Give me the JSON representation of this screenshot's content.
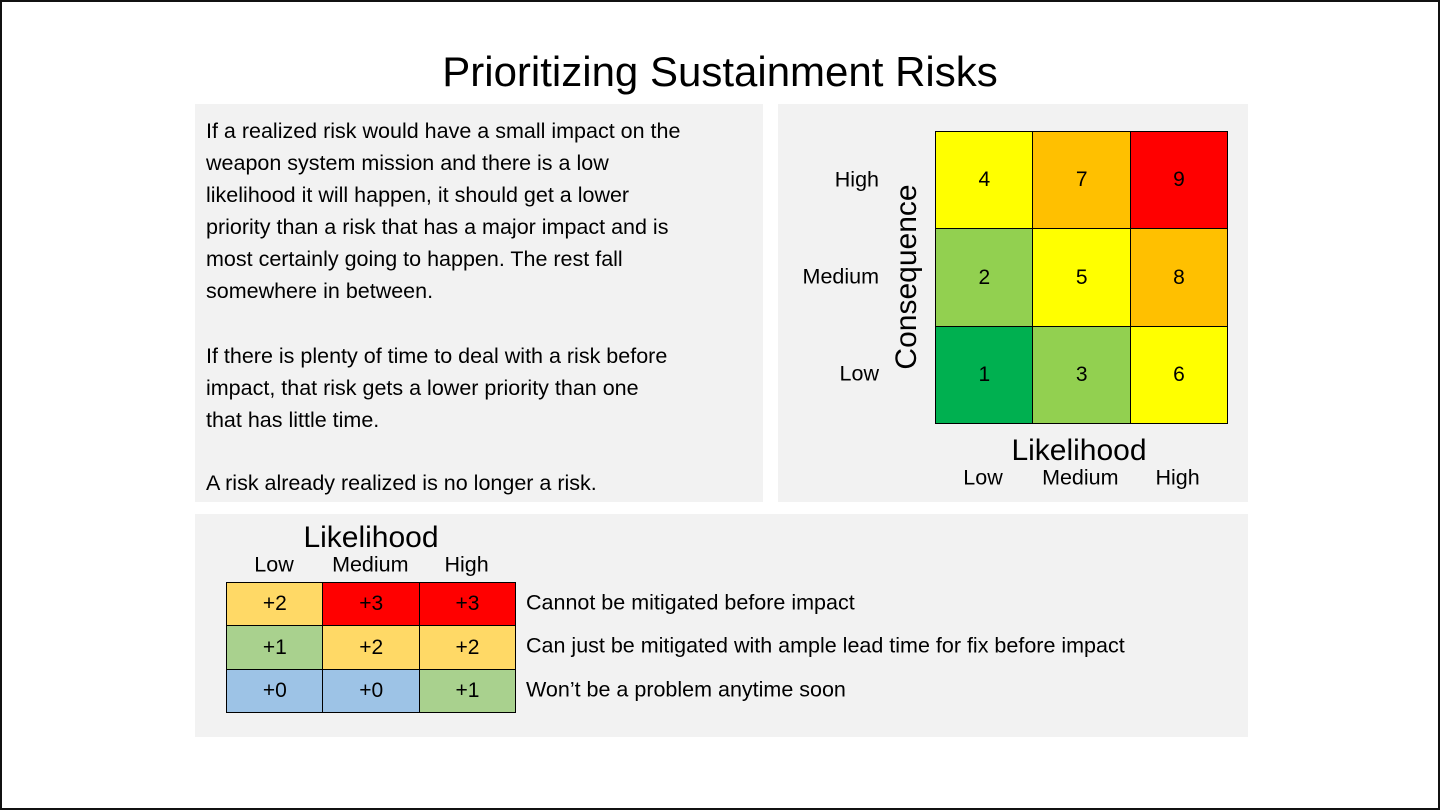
{
  "title": "Prioritizing Sustainment Risks",
  "paragraphs": [
    [
      "If a realized risk would have a small impact on the",
      "weapon system mission and there is a low",
      "likelihood it will happen, it should get a lower",
      "priority than a risk that has a major impact and is",
      "most certainly going to happen. The rest fall",
      "somewhere in between."
    ],
    [
      "If there is plenty of time to deal with a risk before",
      "impact, that risk gets a lower priority than one",
      "that has little time."
    ],
    [
      "A risk already realized is no longer a risk."
    ]
  ],
  "matrix": {
    "y_label": "Consequence",
    "x_label": "Likelihood",
    "rows": [
      "High",
      "Medium",
      "Low"
    ],
    "cols": [
      "Low",
      "Medium",
      "High"
    ],
    "values": [
      [
        "4",
        "7",
        "9"
      ],
      [
        "2",
        "5",
        "8"
      ],
      [
        "1",
        "3",
        "6"
      ]
    ],
    "colors": [
      [
        "#ffff00",
        "#ffc000",
        "#ff0000"
      ],
      [
        "#92d050",
        "#ffff00",
        "#ffc000"
      ],
      [
        "#00b050",
        "#92d050",
        "#ffff00"
      ]
    ]
  },
  "modifier": {
    "x_label": "Likelihood",
    "cols": [
      "Low",
      "Medium",
      "High"
    ],
    "values": [
      [
        "+2",
        "+3",
        "+3"
      ],
      [
        "+1",
        "+2",
        "+2"
      ],
      [
        "+0",
        "+0",
        "+1"
      ]
    ],
    "colors": [
      [
        "#ffd966",
        "#ff0000",
        "#ff0000"
      ],
      [
        "#a9d18e",
        "#ffd966",
        "#ffd966"
      ],
      [
        "#9dc3e6",
        "#9dc3e6",
        "#a9d18e"
      ]
    ],
    "row_descriptions": [
      "Cannot be mitigated before impact",
      "Can just be mitigated with ample lead time for fix before impact",
      "Won’t be a problem anytime soon"
    ]
  }
}
